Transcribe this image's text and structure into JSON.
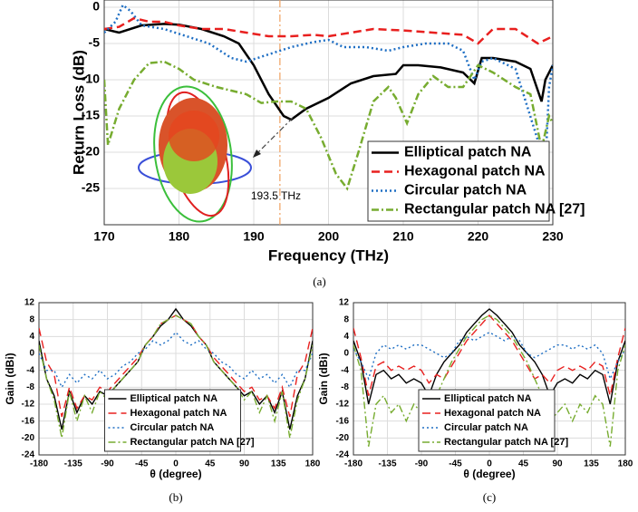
{
  "chart_data": [
    {
      "type": "line",
      "caption": "(a)",
      "xlabel": "Frequency (THz)",
      "ylabel": "Return Loss (dB)",
      "xlim": [
        170,
        230
      ],
      "ylim": [
        -30,
        1
      ],
      "xticks": [
        170,
        180,
        190,
        200,
        210,
        220,
        230
      ],
      "yticks": [
        0,
        -5,
        -10,
        -15,
        -20,
        -25
      ],
      "grid": true,
      "legend": "lower right",
      "annotation": {
        "text": "193.5 THz",
        "x": 193.5
      },
      "series": [
        {
          "name": "Elliptical patch NA",
          "color": "#000000",
          "dash": "solid",
          "x": [
            170,
            172,
            175,
            178,
            180,
            183,
            186,
            188,
            190,
            192,
            194,
            195,
            197,
            200,
            203,
            206,
            209,
            210,
            212,
            215,
            218,
            219.5,
            220.5,
            222,
            225,
            227,
            228.5,
            229,
            230
          ],
          "values": [
            -3,
            -3.5,
            -2.5,
            -2.3,
            -2.4,
            -3,
            -4,
            -5,
            -8,
            -12,
            -15,
            -15.5,
            -14,
            -12.5,
            -10.5,
            -9.5,
            -9.2,
            -8,
            -8,
            -8.3,
            -9,
            -10.5,
            -7,
            -7,
            -7.5,
            -8.5,
            -13,
            -10,
            -8
          ]
        },
        {
          "name": "Hexagonal patch NA",
          "color": "#e8201f",
          "dash": "dashed",
          "x": [
            170,
            172,
            174,
            176,
            178,
            180,
            183,
            186,
            189,
            192,
            195,
            198,
            200,
            203,
            206,
            210,
            214,
            218,
            220,
            222,
            225,
            228,
            230
          ],
          "values": [
            -3,
            -2.7,
            -1.5,
            -2,
            -2,
            -2.5,
            -3,
            -3,
            -3.5,
            -4,
            -4,
            -3.8,
            -4,
            -3.5,
            -3,
            -3.2,
            -3.5,
            -3.8,
            -5,
            -3,
            -3,
            -5,
            -4
          ]
        },
        {
          "name": "Circular patch NA",
          "color": "#1f6fc4",
          "dash": "dotted",
          "x": [
            170,
            171.5,
            172.5,
            173.5,
            175,
            178,
            181,
            184,
            187,
            189,
            192,
            195,
            198,
            200,
            202,
            205,
            208,
            210,
            213,
            216,
            218,
            219.5,
            220.5,
            222,
            225,
            228.5,
            229,
            229.5,
            230
          ],
          "values": [
            -3.5,
            -2,
            0.3,
            -0.5,
            -2.5,
            -3,
            -4,
            -5,
            -7,
            -7.5,
            -6.5,
            -5.5,
            -4.8,
            -4.5,
            -5.5,
            -5.5,
            -6,
            -5.5,
            -5,
            -5,
            -6,
            -10,
            -7.5,
            -7,
            -8.5,
            -20,
            -22,
            -11,
            -8
          ]
        },
        {
          "name": "Rectangular patch NA [27]",
          "color": "#77ac30",
          "dash": "dashdot",
          "x": [
            170,
            170.5,
            172,
            174,
            176,
            178,
            180,
            182,
            185,
            187,
            189,
            191,
            193,
            195,
            197,
            199,
            201,
            202.5,
            204,
            206,
            208,
            209,
            210.5,
            212,
            214,
            216,
            218,
            220,
            222,
            225,
            227,
            228.5,
            229.5,
            230
          ],
          "values": [
            -10,
            -19,
            -14,
            -10,
            -7.7,
            -7.5,
            -8.5,
            -10,
            -11,
            -11.5,
            -12,
            -13.2,
            -13,
            -13,
            -14,
            -18,
            -23,
            -25,
            -20,
            -13,
            -11,
            -12.5,
            -16,
            -12,
            -9.5,
            -11,
            -11,
            -8,
            -9,
            -11,
            -12,
            -19.5,
            -15,
            -16
          ]
        }
      ]
    },
    {
      "type": "line",
      "caption": "(b)",
      "xlabel": "θ (degree)",
      "ylabel": "Gain (dBi)",
      "xlim": [
        -180,
        180
      ],
      "ylim": [
        -24,
        12
      ],
      "xticks": [
        -180,
        -135,
        -90,
        -45,
        0,
        45,
        90,
        135,
        180
      ],
      "yticks": [
        12,
        8,
        4,
        0,
        -4,
        -8,
        -12,
        -16,
        -20,
        -24
      ],
      "grid": true,
      "legend": "lower center",
      "x": [
        -180,
        -170,
        -160,
        -150,
        -140,
        -130,
        -120,
        -110,
        -100,
        -90,
        -80,
        -70,
        -60,
        -50,
        -40,
        -30,
        -20,
        -10,
        0,
        10,
        20,
        30,
        40,
        50,
        60,
        70,
        80,
        90,
        100,
        110,
        120,
        130,
        140,
        150,
        160,
        170,
        180
      ],
      "series": [
        {
          "name": "Elliptical patch NA",
          "color": "#000000",
          "dash": "solid",
          "values": [
            3,
            -6,
            -10,
            -18,
            -9,
            -14,
            -10,
            -12,
            -9,
            -10,
            -8,
            -6,
            -4,
            -2,
            2,
            4,
            6.5,
            8,
            10.5,
            8,
            6.5,
            4,
            2,
            -2,
            -4,
            -6,
            -8,
            -10,
            -9,
            -12,
            -10,
            -14,
            -9,
            -18,
            -10,
            -6,
            3
          ]
        },
        {
          "name": "Hexagonal patch NA",
          "color": "#e8201f",
          "dash": "dashed",
          "values": [
            6,
            -2,
            -5,
            -15,
            -8,
            -13,
            -10,
            -11,
            -8,
            -9,
            -7,
            -5,
            -3,
            -1,
            2,
            4,
            7,
            8,
            9,
            8,
            7,
            4,
            2,
            -1,
            -3,
            -5,
            -7,
            -9,
            -8,
            -11,
            -10,
            -13,
            -8,
            -15,
            -5,
            -2,
            6
          ]
        },
        {
          "name": "Circular patch NA",
          "color": "#1f6fc4",
          "dash": "dotted",
          "values": [
            0,
            -4,
            -4,
            -8,
            -5,
            -7,
            -5,
            -6,
            -4,
            -6,
            -5,
            -3,
            -2,
            0,
            1,
            3,
            2,
            3,
            5,
            3,
            2,
            3,
            1,
            0,
            -2,
            -3,
            -5,
            -6,
            -4,
            -6,
            -5,
            -7,
            -5,
            -8,
            -4,
            -4,
            0
          ]
        },
        {
          "name": "Rectangular patch NA [27]",
          "color": "#77ac30",
          "dash": "dashdot",
          "values": [
            2,
            -6,
            -11,
            -20,
            -9,
            -16,
            -10,
            -14,
            -9,
            -11,
            -8,
            -6,
            -4,
            -2,
            2,
            4,
            7,
            8,
            9,
            8,
            7,
            4,
            2,
            -2,
            -4,
            -6,
            -8,
            -11,
            -9,
            -14,
            -10,
            -16,
            -9,
            -20,
            -11,
            -6,
            2
          ]
        }
      ]
    },
    {
      "type": "line",
      "caption": "(c)",
      "xlabel": "θ (degree)",
      "ylabel": "Gain (dBi)",
      "xlim": [
        -180,
        180
      ],
      "ylim": [
        -24,
        12
      ],
      "xticks": [
        -180,
        -135,
        -90,
        -45,
        0,
        45,
        90,
        135,
        180
      ],
      "yticks": [
        12,
        8,
        4,
        0,
        -4,
        -8,
        -12,
        -16,
        -20,
        -24
      ],
      "grid": true,
      "legend": "lower center",
      "x": [
        -180,
        -170,
        -160,
        -150,
        -140,
        -130,
        -120,
        -110,
        -100,
        -90,
        -80,
        -70,
        -60,
        -50,
        -40,
        -30,
        -20,
        -10,
        0,
        10,
        20,
        30,
        40,
        50,
        60,
        70,
        80,
        90,
        100,
        110,
        120,
        130,
        140,
        150,
        160,
        170,
        180
      ],
      "series": [
        {
          "name": "Elliptical patch NA",
          "color": "#000000",
          "dash": "solid",
          "values": [
            3,
            -2,
            -12,
            -5,
            -4,
            -6,
            -5,
            -7,
            -6,
            -7,
            -10,
            -5,
            -2,
            0,
            2,
            5,
            7,
            9,
            10.5,
            9,
            7,
            5,
            2,
            0,
            -2,
            -5,
            -10,
            -7,
            -6,
            -7,
            -5,
            -6,
            -4,
            -5,
            -12,
            -2,
            3
          ]
        },
        {
          "name": "Hexagonal patch NA",
          "color": "#e8201f",
          "dash": "dashed",
          "values": [
            6,
            -1,
            -10,
            -3,
            -2,
            -4,
            -3,
            -4,
            -3,
            -4,
            -7,
            -5,
            -6,
            -3,
            0,
            3,
            5,
            7,
            9,
            7,
            5,
            3,
            0,
            -3,
            -6,
            -5,
            -7,
            -4,
            -3,
            -4,
            -3,
            -4,
            -2,
            -3,
            -10,
            -1,
            6
          ]
        },
        {
          "name": "Circular patch NA",
          "color": "#1f6fc4",
          "dash": "dotted",
          "values": [
            1,
            -2,
            -6,
            0,
            2,
            1,
            2,
            1,
            2,
            2,
            1,
            0,
            -1,
            0,
            3,
            4,
            3,
            4,
            5,
            4,
            3,
            4,
            3,
            0,
            -1,
            0,
            1,
            2,
            2,
            1,
            2,
            1,
            2,
            0,
            -6,
            -2,
            1
          ]
        },
        {
          "name": "Rectangular patch NA [27]",
          "color": "#77ac30",
          "dash": "dashdot",
          "values": [
            2,
            -4,
            -22,
            -12,
            -10,
            -14,
            -12,
            -16,
            -12,
            -14,
            -16,
            -10,
            -6,
            -2,
            1,
            4,
            6,
            8,
            9,
            8,
            6,
            4,
            1,
            -2,
            -6,
            -10,
            -16,
            -14,
            -12,
            -16,
            -12,
            -14,
            -10,
            -12,
            -22,
            -4,
            2
          ]
        }
      ]
    }
  ]
}
